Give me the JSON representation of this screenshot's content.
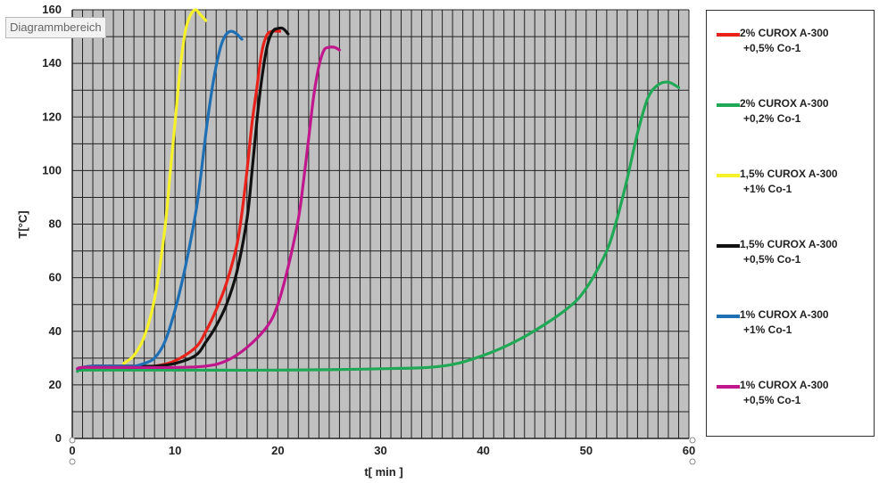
{
  "tooltip": "Diagrammbereich",
  "chart_data": {
    "type": "line",
    "xlabel": "t[ min ]",
    "ylabel": "T[°C]",
    "xlim": [
      0,
      60
    ],
    "ylim": [
      0,
      160
    ],
    "xticks": [
      0,
      10,
      20,
      30,
      40,
      50,
      60
    ],
    "yticks": [
      0,
      20,
      40,
      60,
      80,
      100,
      120,
      140,
      160
    ],
    "grid": true,
    "grid_minor_x_step": 1,
    "grid_y_step": 10,
    "plot_background": "#c0c0c0",
    "legend_position": "right",
    "series": [
      {
        "name": "2% CUROX A-300 +0,5% Co-1",
        "legend_lines": [
          "2% CUROX A-300",
          "+0,5% Co-1"
        ],
        "color": "#e8221b",
        "x": [
          0.5,
          1,
          2,
          4,
          6,
          8,
          10,
          12,
          13,
          14,
          15,
          16,
          16.5,
          17,
          17.5,
          18,
          18.3,
          18.6,
          19,
          19.5,
          20.2
        ],
        "y": [
          26,
          26.5,
          27,
          27,
          27,
          27,
          29,
          34,
          40,
          48,
          58,
          72,
          84,
          100,
          118,
          132,
          141,
          147,
          151,
          152,
          152
        ]
      },
      {
        "name": "2% CUROX A-300 +0,2%  Co-1",
        "legend_lines": [
          "2% CUROX A-300",
          "+0,2%  Co-1"
        ],
        "color": "#1fa855",
        "x": [
          0.5,
          1,
          5,
          10,
          20,
          30,
          36,
          40,
          44,
          48,
          50,
          52,
          53,
          54,
          55,
          56,
          57,
          58,
          59
        ],
        "y": [
          25,
          25.5,
          25.5,
          25.5,
          25.5,
          26,
          27,
          31,
          38,
          48,
          56,
          70,
          82,
          97,
          114,
          127,
          132,
          133,
          131
        ]
      },
      {
        "name": "1,5% CUROX A-300 +1% Co-1",
        "legend_lines": [
          "1,5% CUROX A-300",
          "+1% Co-1"
        ],
        "color": "#f5f22a",
        "x": [
          5,
          6,
          7,
          8,
          9,
          9.5,
          10,
          10.5,
          11,
          11.5,
          12,
          12.5,
          13
        ],
        "y": [
          28,
          31,
          38,
          52,
          78,
          98,
          118,
          138,
          152,
          158,
          160,
          158,
          156
        ]
      },
      {
        "name": "1,5% CUROX A-300 +0,5% Co-1",
        "legend_lines": [
          "1,5% CUROX A-300",
          "+0,5% Co-1"
        ],
        "color": "#111111",
        "x": [
          0.5,
          1,
          2,
          4,
          6,
          8,
          10,
          12,
          13,
          14,
          15,
          16,
          17,
          17.5,
          18,
          18.5,
          19,
          19.5,
          20,
          20.5,
          21
        ],
        "y": [
          26,
          26.5,
          27,
          27,
          27,
          27,
          28,
          31,
          36,
          42,
          50,
          62,
          82,
          100,
          120,
          136,
          147,
          152,
          153,
          153,
          151
        ]
      },
      {
        "name": "1% CUROX A-300 +1% Co-1",
        "legend_lines": [
          "1% CUROX A-300",
          "+1% Co-1"
        ],
        "color": "#1f6fb5",
        "x": [
          0.5,
          1,
          2,
          4,
          6,
          7,
          8,
          9,
          10,
          11,
          12,
          12.5,
          13,
          13.5,
          14,
          14.5,
          15,
          15.5,
          16,
          16.5
        ],
        "y": [
          26,
          26.5,
          27,
          27,
          27,
          28,
          30,
          36,
          48,
          64,
          84,
          98,
          114,
          128,
          139,
          147,
          151,
          152,
          151,
          149
        ]
      },
      {
        "name": "1% CUROX A-300 +0,5% Co-1",
        "legend_lines": [
          "1% CUROX A-300",
          "+0,5% Co-1"
        ],
        "color": "#c0178c",
        "x": [
          0.5,
          1,
          4,
          10,
          13,
          15,
          17,
          19,
          20,
          21,
          22,
          22.5,
          23,
          23.5,
          24,
          24.5,
          25,
          25.5,
          26
        ],
        "y": [
          26,
          26.5,
          26.5,
          26.5,
          27,
          29,
          34,
          42,
          50,
          64,
          82,
          96,
          112,
          128,
          139,
          145,
          146,
          146,
          145
        ]
      }
    ]
  }
}
